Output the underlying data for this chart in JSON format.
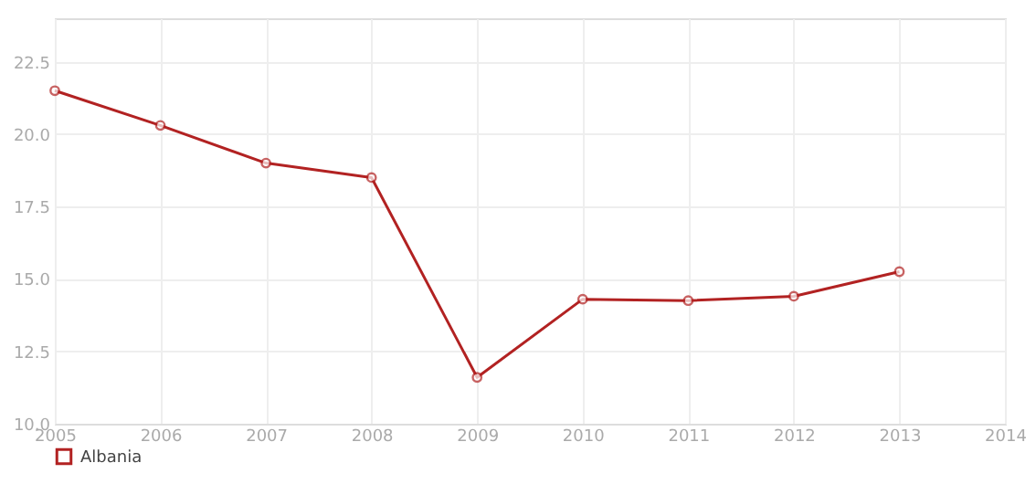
{
  "chart_data": {
    "type": "line",
    "x": [
      2005,
      2006,
      2007,
      2008,
      2009,
      2010,
      2011,
      2012,
      2013
    ],
    "series": [
      {
        "name": "Albania",
        "color": "#b22222",
        "values": [
          21.5,
          20.3,
          19.0,
          18.5,
          11.6,
          14.3,
          14.25,
          14.4,
          15.25
        ]
      }
    ],
    "xlim": [
      2005,
      2014
    ],
    "xticks": [
      2005,
      2006,
      2007,
      2008,
      2009,
      2010,
      2011,
      2012,
      2013,
      2014
    ],
    "ylim": [
      10,
      24
    ],
    "yticks": [
      {
        "value": 10,
        "label": "10.0"
      },
      {
        "value": 12.5,
        "label": "12.5"
      },
      {
        "value": 15,
        "label": "15.0"
      },
      {
        "value": 17.5,
        "label": "17.5"
      },
      {
        "value": 20,
        "label": "20.0"
      },
      {
        "value": 22.5,
        "label": "22.5"
      }
    ],
    "grid": true,
    "legend": "bottom left",
    "marker": "circle",
    "line_style": "solid"
  }
}
